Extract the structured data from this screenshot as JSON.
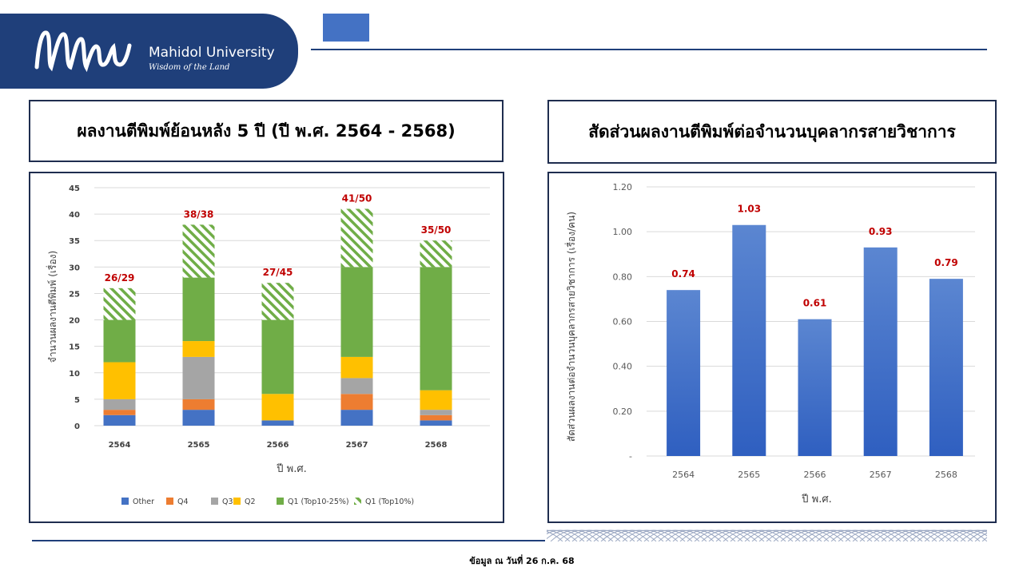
{
  "header": {
    "logo_name": "Mahidol University",
    "logo_tagline": "Wisdom of the Land"
  },
  "titles": {
    "left": "ผลงานตีพิมพ์ย้อนหลัง 5 ปี (ปี พ.ศ. 2564 - 2568)",
    "right": "สัดส่วนผลงานตีพิมพ์ต่อจำนวนบุคลากรสายวิชาการ"
  },
  "footer": {
    "note": "ข้อมูล ณ วันที่ 26 ก.ค. 68"
  },
  "colors": {
    "brand_navy": "#1f3f7a",
    "accent_blue": "#4472c4",
    "other": "#4472c4",
    "q4": "#ed7d31",
    "q3": "#a5a5a5",
    "q2": "#ffc000",
    "q1_top10_25": "#70ad47",
    "q1_top10": "#70ad47",
    "label_red": "#c00000"
  },
  "chart_data": [
    {
      "type": "bar",
      "stacked": true,
      "categories": [
        "2564",
        "2565",
        "2566",
        "2567",
        "2568"
      ],
      "series": [
        {
          "name": "Other",
          "values": [
            2,
            3,
            1,
            3,
            1
          ]
        },
        {
          "name": "Q4",
          "values": [
            1,
            2,
            0,
            3,
            1
          ]
        },
        {
          "name": "Q3",
          "values": [
            2,
            8,
            0,
            3,
            1
          ]
        },
        {
          "name": "Q2",
          "values": [
            7,
            3,
            5,
            4,
            3.7
          ]
        },
        {
          "name": "Q1 (Top10-25%)",
          "values": [
            8,
            12,
            14,
            17,
            23.3
          ]
        },
        {
          "name": "Q1 (Top10%)",
          "values": [
            6,
            10,
            7,
            11,
            5
          ]
        }
      ],
      "data_labels": [
        "26/29",
        "38/38",
        "27/45",
        "41/50",
        "35/50"
      ],
      "xlabel": "ปี พ.ศ.",
      "ylabel": "จำนวนผลงานตีพิมพ์ (เรื่อง)",
      "ylim": [
        0,
        45
      ],
      "yticks": [
        "0",
        "5",
        "10",
        "15",
        "20",
        "25",
        "30",
        "35",
        "40",
        "45"
      ],
      "grid": true,
      "legend_position": "bottom"
    },
    {
      "type": "bar",
      "categories": [
        "2564",
        "2565",
        "2566",
        "2567",
        "2568"
      ],
      "values": [
        0.74,
        1.03,
        0.61,
        0.93,
        0.79
      ],
      "data_labels": [
        "0.74",
        "1.03",
        "0.61",
        "0.93",
        "0.79"
      ],
      "xlabel": "ปี พ.ศ.",
      "ylabel": "สัดส่วนผลงานต่อจำนวนบุคลากรสายวิชาการ (เรื่อง/คน)",
      "ylim": [
        0,
        1.2
      ],
      "yticks": [
        "-",
        "0.20",
        "0.40",
        "0.60",
        "0.80",
        "1.00",
        "1.20"
      ],
      "grid": true
    }
  ]
}
